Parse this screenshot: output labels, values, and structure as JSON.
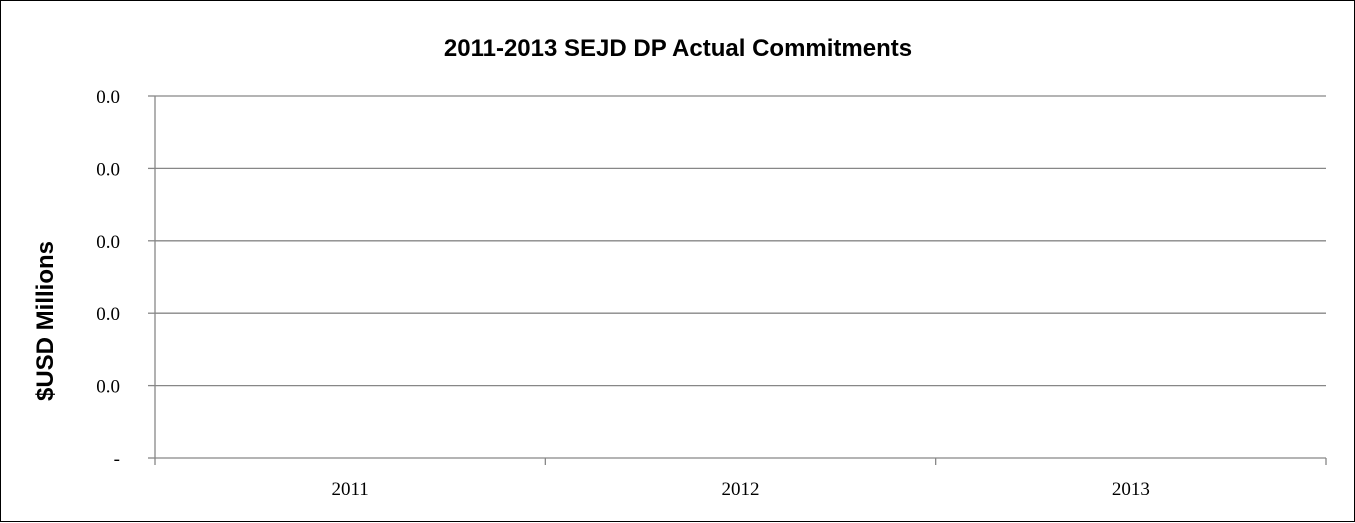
{
  "chart_data": {
    "type": "bar",
    "title": "2011-2013 SEJD DP Actual Commitments",
    "xlabel": "",
    "ylabel": "$USD Millions",
    "categories": [
      "2011",
      "2012",
      "2013"
    ],
    "series": [
      {
        "values": [
          0,
          0,
          0
        ]
      }
    ],
    "y_tick_labels": [
      "-",
      "0.0",
      "0.0",
      "0.0",
      "0.0",
      "0.0"
    ],
    "ylim": [
      0,
      1
    ],
    "grid": true,
    "legend": "none",
    "colors": {
      "axis": "#878787",
      "grid": "#878787",
      "text": "#000000",
      "background": "#ffffff"
    }
  }
}
